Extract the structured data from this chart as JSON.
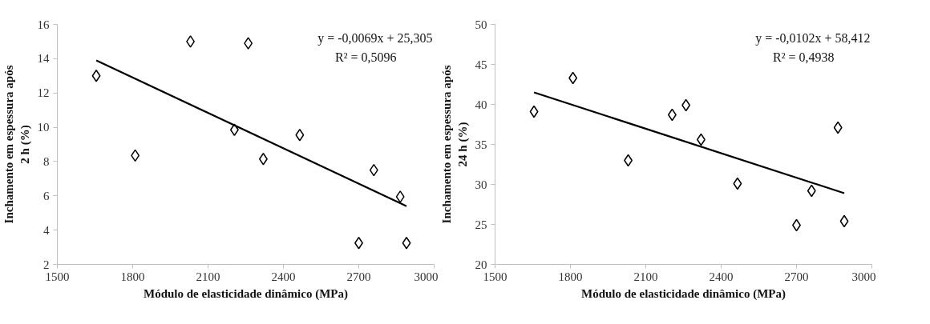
{
  "chart_data": [
    {
      "type": "scatter",
      "xlabel": "Módulo de elasticidade dinâmico (MPa)",
      "ylabel": "Inchamento em espessura após\n2 h (%)",
      "xlim": [
        1500,
        3000
      ],
      "xticks": [
        1500,
        1800,
        2100,
        2400,
        2700,
        3000
      ],
      "ylim": [
        2,
        16
      ],
      "yticks": [
        2,
        4,
        6,
        8,
        10,
        12,
        14,
        16
      ],
      "grid": false,
      "annotations": [
        "y = -0,0069x + 25,305",
        "R² = 0,5096"
      ],
      "series": [
        {
          "marker": "diamond",
          "color": "#000000",
          "x": [
            1655,
            1810,
            2030,
            2205,
            2260,
            2320,
            2465,
            2700,
            2760,
            2865,
            2890
          ],
          "values": [
            13.0,
            8.35,
            15.0,
            9.85,
            14.9,
            8.15,
            9.55,
            3.25,
            7.5,
            5.95,
            3.25
          ]
        },
        {
          "type": "line",
          "marker": "none",
          "line_style": "solid",
          "color": "#000000",
          "x": [
            1655,
            2890
          ],
          "values": [
            13.9,
            5.4
          ]
        }
      ]
    },
    {
      "type": "scatter",
      "xlabel": "Módulo de elasticidade dinâmico (MPa)",
      "ylabel": "Inchamento em espessura após\n24 h (%)",
      "xlim": [
        1500,
        3000
      ],
      "xticks": [
        1500,
        1800,
        2100,
        2400,
        2700,
        3000
      ],
      "ylim": [
        20,
        50
      ],
      "yticks": [
        20,
        25,
        30,
        35,
        40,
        45,
        50
      ],
      "grid": false,
      "annotations": [
        "y = -0,0102x + 58,412",
        "R² = 0,4938"
      ],
      "series": [
        {
          "marker": "diamond",
          "color": "#000000",
          "x": [
            1655,
            1810,
            2030,
            2205,
            2260,
            2320,
            2465,
            2700,
            2760,
            2865,
            2890
          ],
          "values": [
            39.1,
            43.3,
            33.0,
            38.7,
            39.9,
            35.6,
            30.1,
            24.9,
            29.2,
            37.1,
            25.4
          ]
        },
        {
          "type": "line",
          "marker": "none",
          "line_style": "solid",
          "color": "#000000",
          "x": [
            1655,
            2890
          ],
          "values": [
            41.5,
            28.9
          ]
        }
      ]
    }
  ]
}
